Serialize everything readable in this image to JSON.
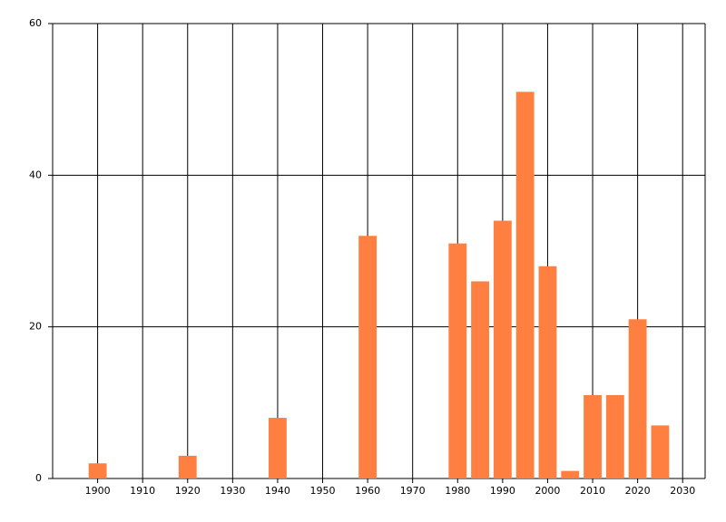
{
  "chart_data": {
    "type": "bar",
    "x": [
      1900,
      1920,
      1940,
      1960,
      1980,
      1985,
      1990,
      1995,
      2000,
      2005,
      2010,
      2015,
      2020,
      2025
    ],
    "values": [
      2,
      3,
      8,
      32,
      31,
      26,
      34,
      51,
      28,
      1,
      11,
      11,
      21,
      7
    ],
    "color": "#ff7f41",
    "xlim": [
      1890,
      2035
    ],
    "xticks": [
      1900,
      1910,
      1920,
      1930,
      1940,
      1950,
      1960,
      1970,
      1980,
      1990,
      2000,
      2010,
      2020,
      2030
    ],
    "ylim": [
      0,
      60
    ],
    "yticks": [
      0,
      20,
      40,
      60
    ],
    "grid": true
  }
}
